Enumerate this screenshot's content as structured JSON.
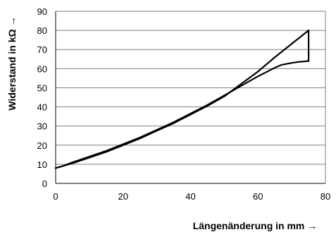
{
  "chart_data": {
    "type": "line",
    "title": "",
    "xlabel": "Längenänderung in mm →",
    "ylabel": "Widerstand in kΩ →",
    "xlim": [
      0,
      80
    ],
    "ylim": [
      0,
      90
    ],
    "x_ticks": [
      0,
      20,
      40,
      60,
      80
    ],
    "y_ticks": [
      0,
      10,
      20,
      30,
      40,
      50,
      60,
      70,
      80,
      90
    ],
    "grid": "horizontal",
    "legend": "none",
    "colors": {
      "line": "#000000",
      "grid": "#7f7f7f"
    },
    "series": [
      {
        "x": [
          0,
          5,
          10,
          15,
          20,
          25,
          30,
          35,
          40,
          45,
          50,
          55,
          60,
          65,
          70,
          75
        ],
        "y": [
          8,
          10.5,
          13.5,
          16.5,
          20,
          23.5,
          27.5,
          31.5,
          36,
          40.5,
          45.5,
          52,
          58.5,
          66,
          73,
          80
        ]
      },
      {
        "x": [
          75,
          75
        ],
        "y": [
          80,
          64
        ]
      },
      {
        "x": [
          75,
          72,
          70,
          67,
          65,
          60,
          55,
          50,
          45,
          40,
          35,
          30,
          25,
          20,
          15,
          10,
          5,
          2,
          0
        ],
        "y": [
          64,
          63.5,
          63,
          62,
          60.5,
          56,
          51,
          46,
          41,
          36.5,
          32,
          28,
          24,
          20.5,
          17,
          14,
          11,
          9,
          8
        ]
      }
    ]
  }
}
